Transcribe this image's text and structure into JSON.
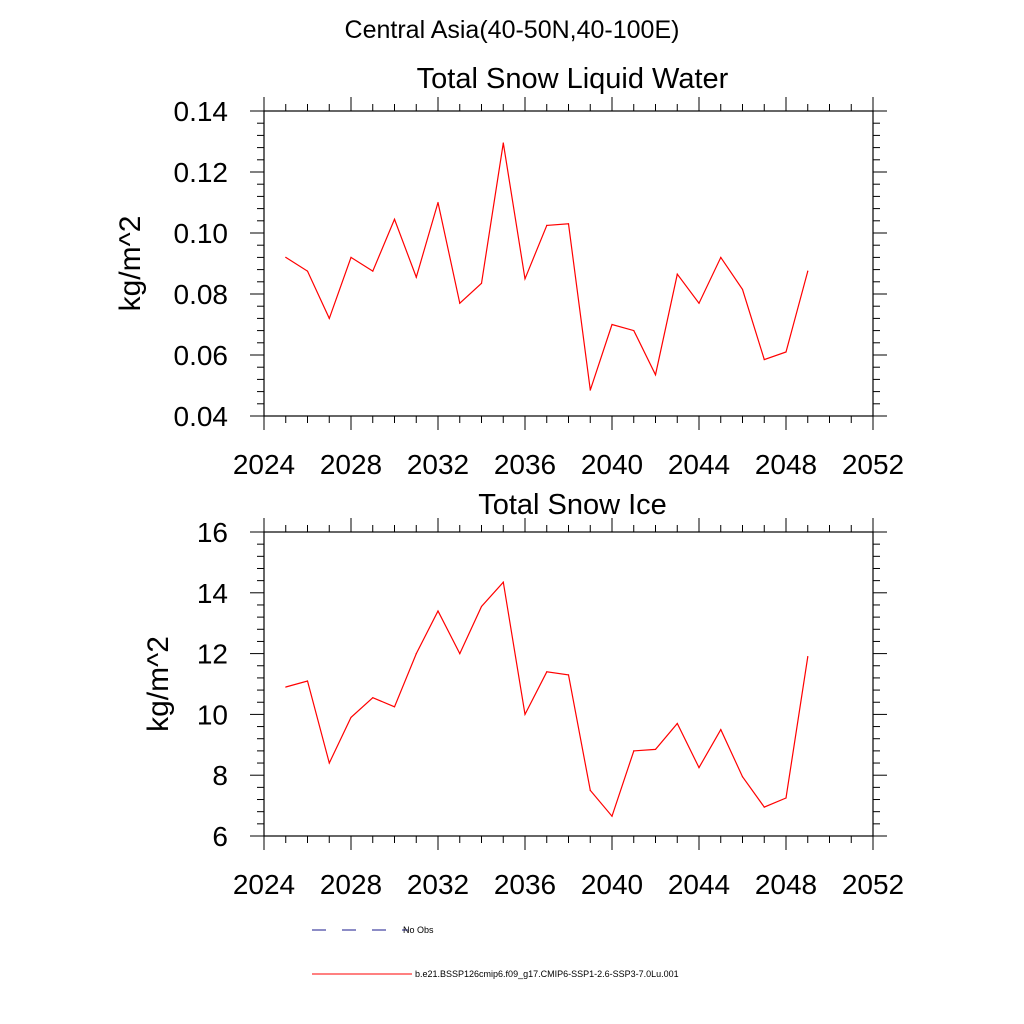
{
  "page_title": "Central Asia(40-50N,40-100E)",
  "colors": {
    "series": "#ff0000",
    "obs": "#1a1a8c",
    "axis": "#000000"
  },
  "legend": [
    {
      "label": "No Obs",
      "style": "dashed",
      "color": "#1a1a8c"
    },
    {
      "label": "b.e21.BSSP126cmip6.f09_g17.CMIP6-SSP1-2.6-SSP3-7.0Lu.001",
      "style": "solid",
      "color": "#ff0000"
    }
  ],
  "chart_data": [
    {
      "type": "line",
      "title": "Total Snow Liquid Water",
      "xlabel": "",
      "ylabel": "kg/m^2",
      "xlim": [
        2024,
        2052
      ],
      "ylim": [
        0.04,
        0.14
      ],
      "x_ticks": [
        "2024",
        "2028",
        "2032",
        "2036",
        "2040",
        "2044",
        "2048",
        "2052"
      ],
      "y_ticks": [
        "0.04",
        "0.06",
        "0.08",
        "0.10",
        "0.12",
        "0.14"
      ],
      "grid": false,
      "x": [
        2025,
        2026,
        2027,
        2028,
        2029,
        2030,
        2031,
        2032,
        2033,
        2034,
        2035,
        2036,
        2037,
        2038,
        2039,
        2040,
        2041,
        2042,
        2043,
        2044,
        2045,
        2046,
        2047,
        2048,
        2049
      ],
      "series": [
        {
          "values": [
            0.092,
            0.0875,
            0.072,
            0.092,
            0.0875,
            0.1045,
            0.0855,
            0.11,
            0.077,
            0.0835,
            0.1295,
            0.085,
            0.1025,
            0.103,
            0.0485,
            0.07,
            0.068,
            0.0535,
            0.0865,
            0.077,
            0.092,
            0.0815,
            0.0585,
            0.061,
            0.0875
          ]
        }
      ]
    },
    {
      "type": "line",
      "title": "Total Snow Ice",
      "xlabel": "",
      "ylabel": "kg/m^2",
      "xlim": [
        2024,
        2052
      ],
      "ylim": [
        6,
        16
      ],
      "x_ticks": [
        "2024",
        "2028",
        "2032",
        "2036",
        "2040",
        "2044",
        "2048",
        "2052"
      ],
      "y_ticks": [
        "6",
        "8",
        "10",
        "12",
        "14",
        "16"
      ],
      "grid": false,
      "x": [
        2025,
        2026,
        2027,
        2028,
        2029,
        2030,
        2031,
        2032,
        2033,
        2034,
        2035,
        2036,
        2037,
        2038,
        2039,
        2040,
        2041,
        2042,
        2043,
        2044,
        2045,
        2046,
        2047,
        2048,
        2049
      ],
      "series": [
        {
          "values": [
            10.9,
            11.1,
            8.4,
            9.9,
            10.55,
            10.25,
            12.0,
            13.4,
            12.0,
            13.55,
            14.35,
            10.0,
            11.4,
            11.3,
            7.5,
            6.65,
            8.8,
            8.85,
            9.7,
            8.25,
            9.5,
            7.95,
            6.95,
            7.25,
            11.9
          ]
        }
      ]
    }
  ]
}
